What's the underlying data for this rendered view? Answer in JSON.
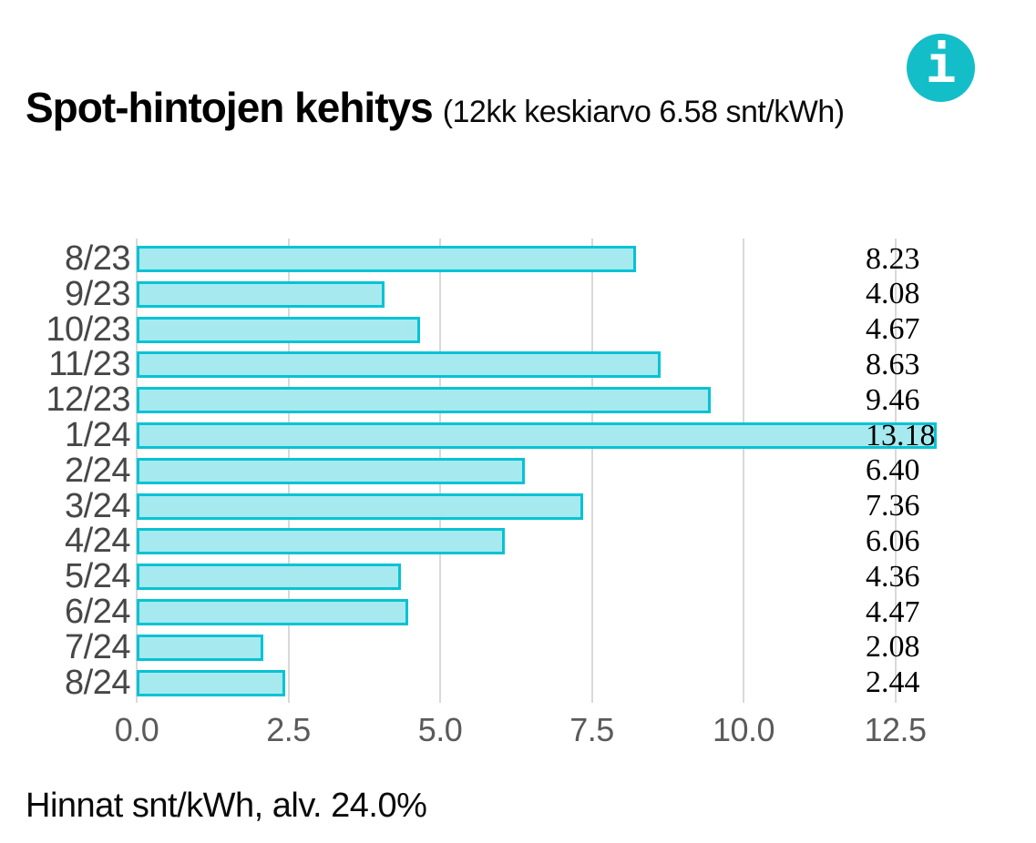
{
  "header": {
    "title": "Spot-hintojen kehitys",
    "subtitle": "(12kk keskiarvo 6.58 snt/kWh)",
    "info_glyph": "i"
  },
  "footer": {
    "note": "Hinnat snt/kWh, alv. 24.0%"
  },
  "chart_data": {
    "type": "bar",
    "orientation": "horizontal",
    "title": "Spot-hintojen kehitys (12kk keskiarvo 6.58 snt/kWh)",
    "categories": [
      "8/23",
      "9/23",
      "10/23",
      "11/23",
      "12/23",
      "1/24",
      "2/24",
      "3/24",
      "4/24",
      "5/24",
      "6/24",
      "7/24",
      "8/24"
    ],
    "values": [
      8.23,
      4.08,
      4.67,
      8.63,
      9.46,
      13.18,
      6.4,
      7.36,
      6.06,
      4.36,
      4.47,
      2.08,
      2.44
    ],
    "value_labels": [
      "8.23",
      "4.08",
      "4.67",
      "8.63",
      "9.46",
      "13.18",
      "6.40",
      "7.36",
      "6.06",
      "4.36",
      "4.47",
      "2.08",
      "2.44"
    ],
    "x_ticks": [
      "0.0",
      "2.5",
      "5.0",
      "7.5",
      "10.0",
      "12.5"
    ],
    "x_tick_values": [
      0,
      2.5,
      5,
      7.5,
      10,
      12.5
    ],
    "xlim": [
      0,
      13.25
    ],
    "grid": true,
    "legend": "none",
    "note": "Hinnat snt/kWh, alv. 24.0%",
    "colors": {
      "bar_fill": "#a6e9ef",
      "bar_border": "#05c3d4",
      "gridline": "#d9d9d9",
      "info_icon": "#14bec8",
      "category_label": "#474747",
      "tick_label": "#5a5a5a"
    }
  }
}
